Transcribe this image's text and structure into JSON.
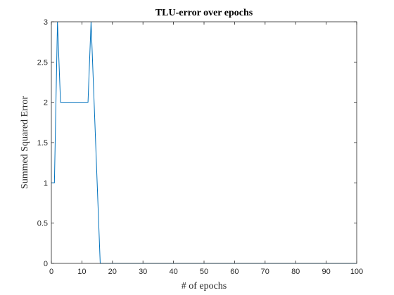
{
  "chart_data": {
    "type": "line",
    "title": "TLU-error over epochs",
    "xlabel": "# of epochs",
    "ylabel": "Summed Squared Error",
    "xlim": [
      0,
      100
    ],
    "ylim": [
      0,
      3
    ],
    "xticks": [
      0,
      10,
      20,
      30,
      40,
      50,
      60,
      70,
      80,
      90,
      100
    ],
    "yticks": [
      0,
      0.5,
      1,
      1.5,
      2,
      2.5,
      3
    ],
    "xtick_labels": [
      "0",
      "10",
      "20",
      "30",
      "40",
      "50",
      "60",
      "70",
      "80",
      "90",
      "100"
    ],
    "ytick_labels": [
      "0",
      "0.5",
      "1",
      "1.5",
      "2",
      "2.5",
      "3"
    ],
    "grid": false,
    "series": [
      {
        "color": "#0072BD",
        "x": [
          0,
          1,
          2,
          3,
          4,
          5,
          6,
          7,
          8,
          9,
          10,
          11,
          12,
          13,
          14,
          15,
          16,
          17,
          18,
          19,
          20,
          30,
          40,
          50,
          60,
          70,
          80,
          90,
          100
        ],
        "y": [
          1,
          1,
          3,
          2,
          2,
          2,
          2,
          2,
          2,
          2,
          2,
          2,
          2,
          3,
          2,
          1,
          0,
          0,
          0,
          0,
          0,
          0,
          0,
          0,
          0,
          0,
          0,
          0,
          0
        ]
      }
    ]
  }
}
